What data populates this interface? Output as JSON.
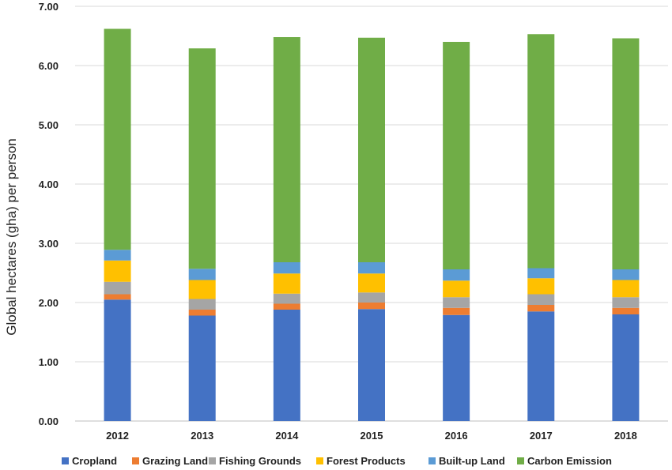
{
  "chart_data": {
    "type": "bar",
    "stacked": true,
    "title": "",
    "xlabel": "",
    "ylabel": "Global hectares (gha) per person",
    "ylim": [
      0,
      7
    ],
    "yticks": [
      "0.00",
      "1.00",
      "2.00",
      "3.00",
      "4.00",
      "5.00",
      "6.00",
      "7.00"
    ],
    "grid": "horizontal",
    "legend_position": "bottom",
    "categories": [
      "2012",
      "2013",
      "2014",
      "2015",
      "2016",
      "2017",
      "2018"
    ],
    "series": [
      {
        "name": "Cropland",
        "color": "#4472C4",
        "values": [
          2.05,
          1.78,
          1.88,
          1.89,
          1.79,
          1.85,
          1.8
        ]
      },
      {
        "name": "Grazing Land",
        "color": "#ED7D31",
        "values": [
          0.09,
          0.1,
          0.1,
          0.11,
          0.12,
          0.11,
          0.11
        ]
      },
      {
        "name": "Fishing Grounds",
        "color": "#A5A5A5",
        "values": [
          0.21,
          0.18,
          0.17,
          0.17,
          0.18,
          0.18,
          0.18
        ]
      },
      {
        "name": "Forest Products",
        "color": "#FFC000",
        "values": [
          0.36,
          0.32,
          0.34,
          0.32,
          0.28,
          0.27,
          0.29
        ]
      },
      {
        "name": "Built-up Land",
        "color": "#5B9BD5",
        "values": [
          0.18,
          0.19,
          0.19,
          0.19,
          0.19,
          0.17,
          0.18
        ]
      },
      {
        "name": "Carbon Emission",
        "color": "#70AD47",
        "values": [
          3.73,
          3.72,
          3.8,
          3.79,
          3.84,
          3.95,
          3.9
        ]
      }
    ]
  }
}
